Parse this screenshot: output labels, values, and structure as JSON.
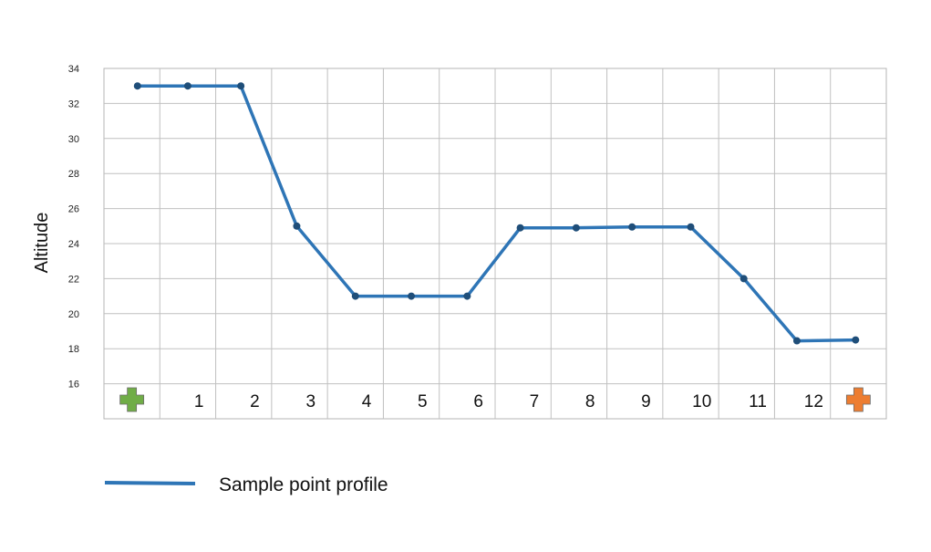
{
  "chart_data": {
    "type": "line",
    "ylabel": "Altitude",
    "ylim": [
      14,
      34
    ],
    "y_ticks": [
      16,
      18,
      20,
      22,
      24,
      26,
      28,
      30,
      32,
      34
    ],
    "categories": [
      "",
      "1",
      "2",
      "3",
      "4",
      "5",
      "6",
      "7",
      "8",
      "9",
      "10",
      "11",
      "12",
      ""
    ],
    "category_markers": [
      {
        "index": 0,
        "icon": "green-plus-icon",
        "color": "#70ad47"
      },
      {
        "index": 13,
        "icon": "orange-plus-icon",
        "color": "#ed7d31"
      }
    ],
    "series": [
      {
        "name": "Sample point profile",
        "color": "#2e75b6",
        "points": [
          {
            "x": 0.6,
            "y": 33.0
          },
          {
            "x": 1.5,
            "y": 33.0
          },
          {
            "x": 2.45,
            "y": 33.0
          },
          {
            "x": 3.45,
            "y": 25.0
          },
          {
            "x": 4.5,
            "y": 21.0
          },
          {
            "x": 5.5,
            "y": 21.0
          },
          {
            "x": 6.5,
            "y": 21.0
          },
          {
            "x": 7.45,
            "y": 24.9
          },
          {
            "x": 8.45,
            "y": 24.9
          },
          {
            "x": 9.45,
            "y": 24.95
          },
          {
            "x": 10.5,
            "y": 24.95
          },
          {
            "x": 11.45,
            "y": 22.0
          },
          {
            "x": 12.4,
            "y": 18.45
          },
          {
            "x": 13.45,
            "y": 18.5
          }
        ]
      }
    ],
    "grid": true,
    "legend": {
      "position": "bottom-left",
      "label": "Sample point profile"
    }
  }
}
